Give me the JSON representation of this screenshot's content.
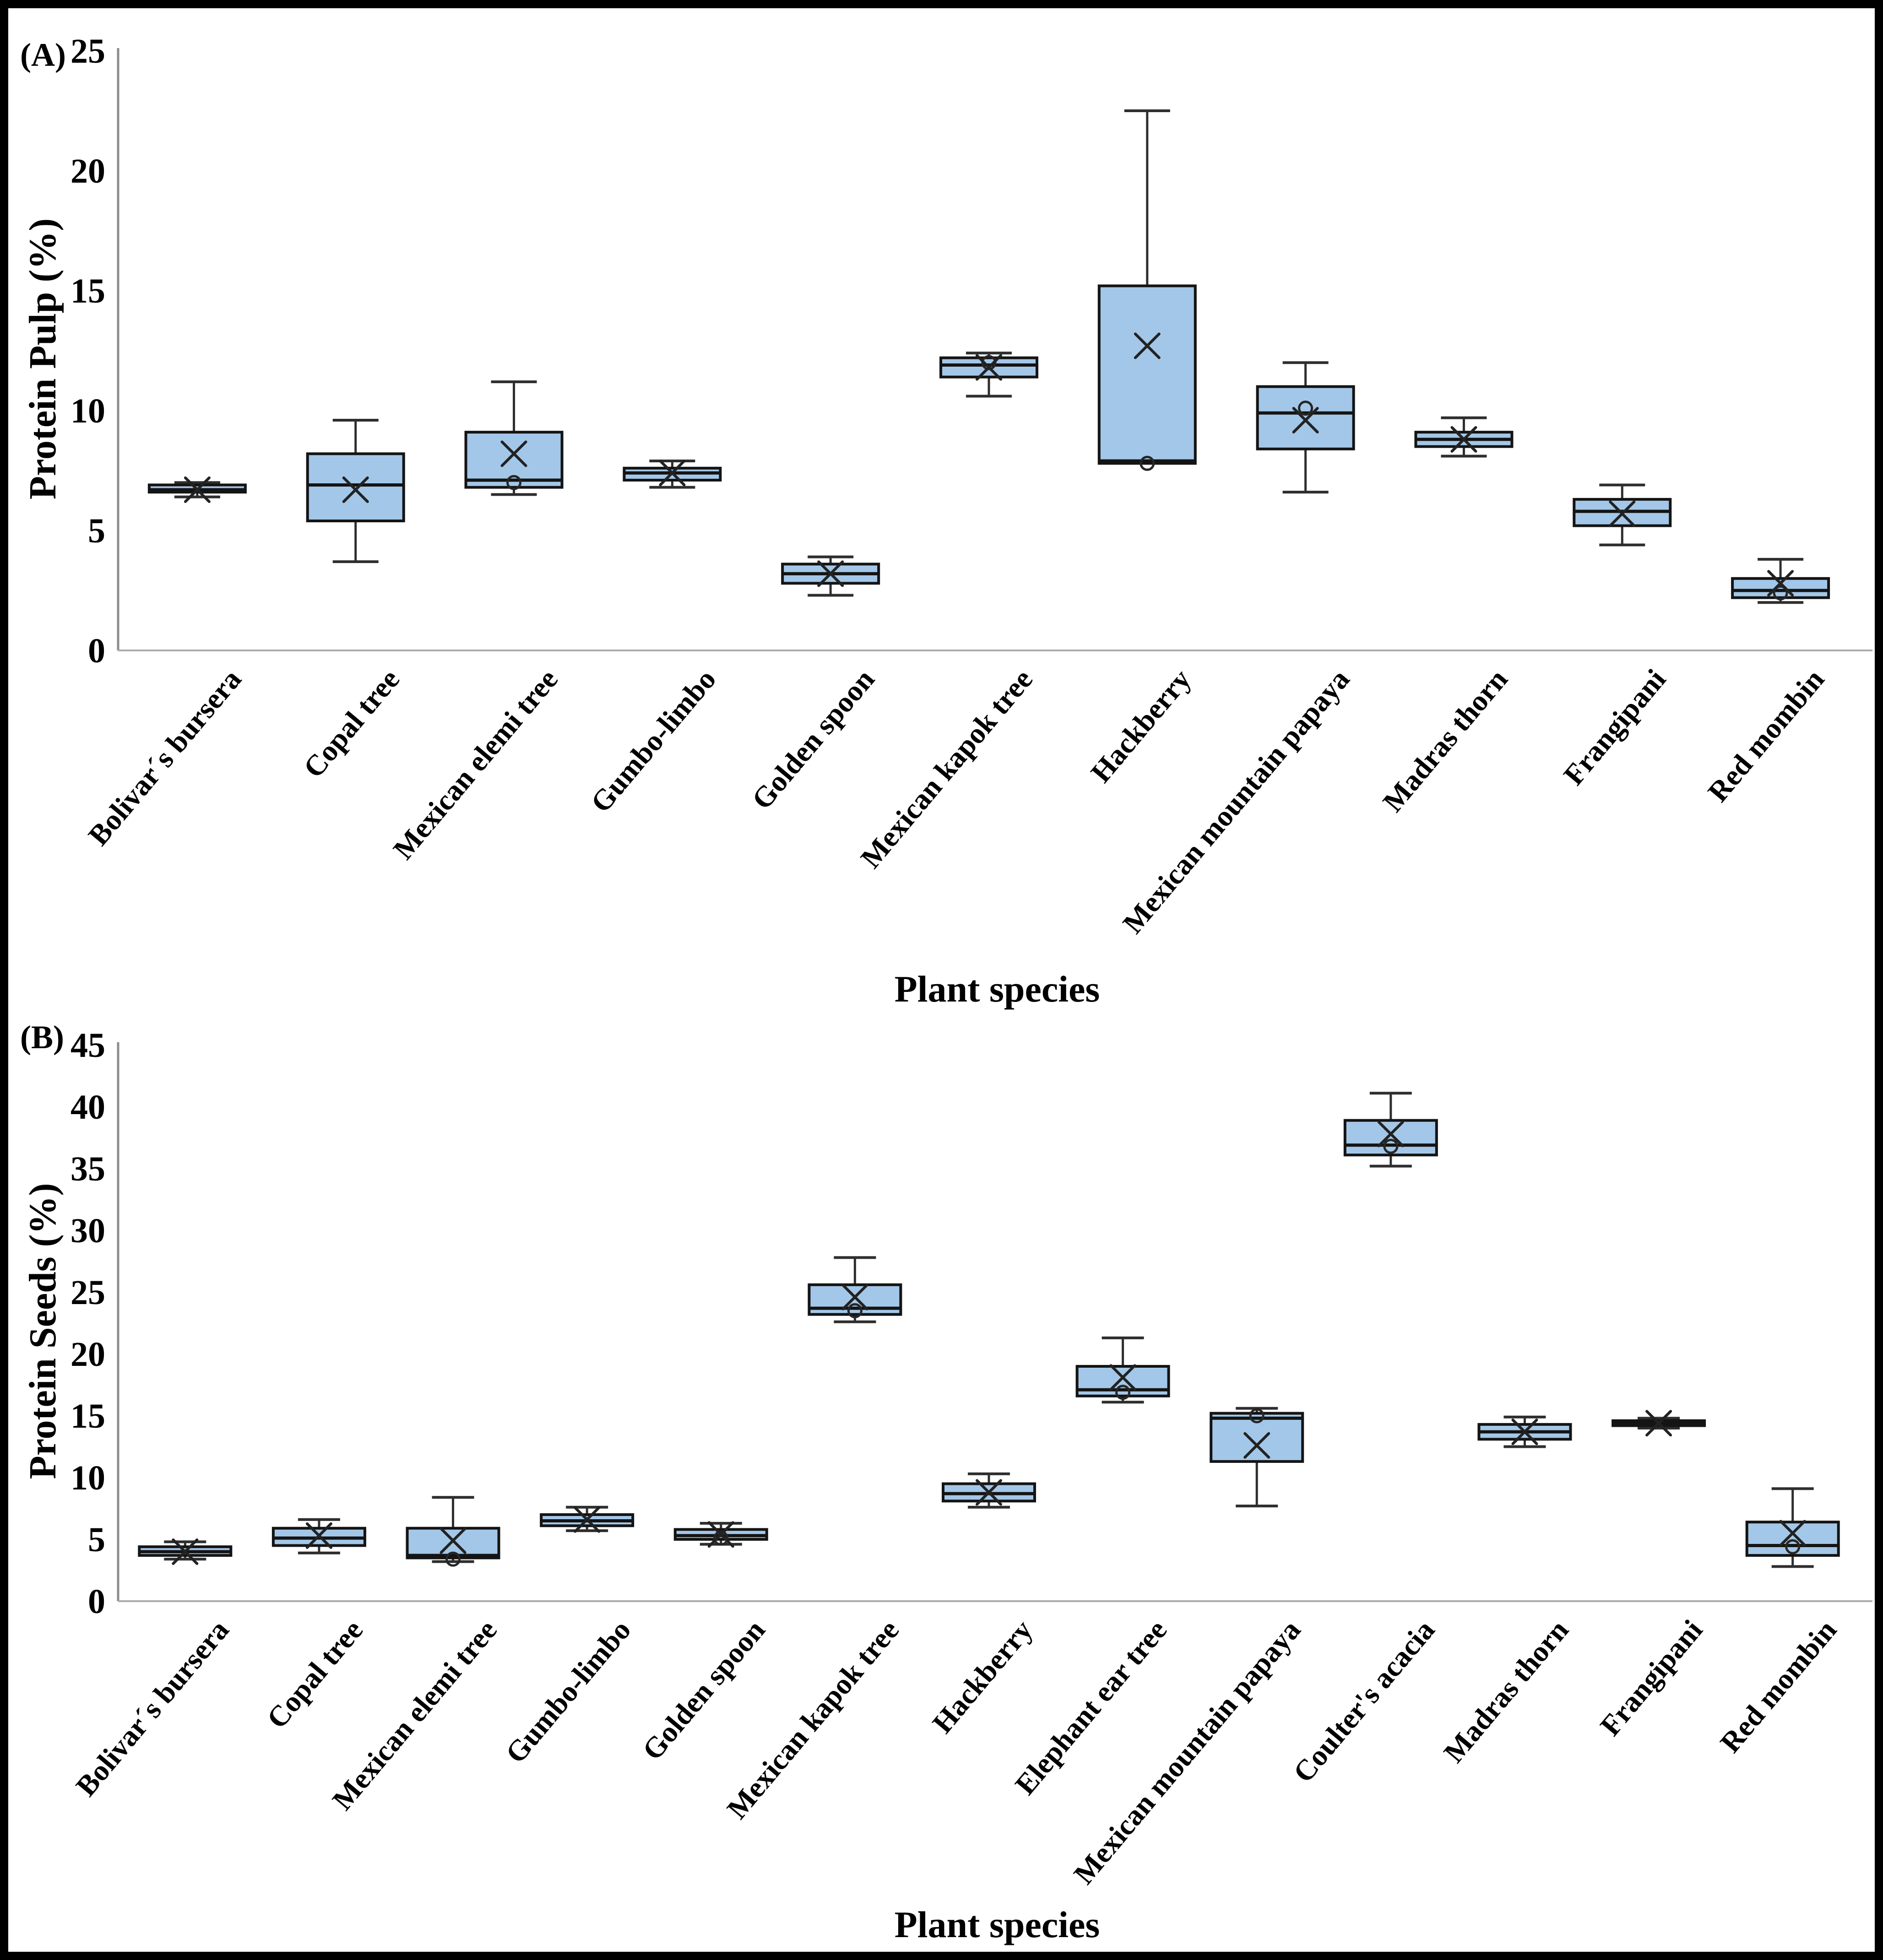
{
  "chart_data": [
    {
      "type": "box",
      "panel_label": "(A)",
      "ylabel": "Protein Pulp (%)",
      "xlabel": "Plant species",
      "ylim": [
        0,
        25
      ],
      "ytick_step": 5,
      "grid": false,
      "legend": false,
      "categories": [
        "Bolivar´s bursera",
        "Copal tree",
        "Mexican elemi tree",
        "Gumbo-limbo",
        "Golden spoon",
        "Mexican kapok tree",
        "Hackberry",
        "Mexican mountain papaya",
        "Madras thorn",
        "Frangipani",
        "Red mombin"
      ],
      "series": [
        {
          "name": "Bolivar´s bursera",
          "min": 6.4,
          "q1": 6.6,
          "median": 6.7,
          "q3": 6.9,
          "max": 7.0,
          "mean": 6.7,
          "outliers": []
        },
        {
          "name": "Copal tree",
          "min": 3.7,
          "q1": 5.4,
          "median": 6.9,
          "q3": 8.2,
          "max": 9.6,
          "mean": 6.7,
          "outliers": []
        },
        {
          "name": "Mexican elemi tree",
          "min": 6.5,
          "q1": 6.8,
          "median": 7.1,
          "q3": 9.1,
          "max": 11.2,
          "mean": 8.2,
          "outliers": [
            7.0
          ]
        },
        {
          "name": "Gumbo-limbo",
          "min": 6.8,
          "q1": 7.1,
          "median": 7.4,
          "q3": 7.6,
          "max": 7.9,
          "mean": 7.4,
          "outliers": []
        },
        {
          "name": "Golden spoon",
          "min": 2.3,
          "q1": 2.8,
          "median": 3.2,
          "q3": 3.6,
          "max": 3.9,
          "mean": 3.2,
          "outliers": []
        },
        {
          "name": "Mexican kapok tree",
          "min": 10.6,
          "q1": 11.4,
          "median": 11.9,
          "q3": 12.2,
          "max": 12.4,
          "mean": 11.8,
          "outliers": [
            12.0
          ]
        },
        {
          "name": "Hackberry",
          "min": 7.8,
          "q1": 7.8,
          "median": 7.9,
          "q3": 15.2,
          "max": 22.5,
          "mean": 12.7,
          "outliers": [
            7.8
          ]
        },
        {
          "name": "Mexican mountain papaya",
          "min": 6.6,
          "q1": 8.4,
          "median": 9.9,
          "q3": 11.0,
          "max": 12.0,
          "mean": 9.6,
          "outliers": [
            10.1
          ]
        },
        {
          "name": "Madras thorn",
          "min": 8.1,
          "q1": 8.5,
          "median": 8.8,
          "q3": 9.1,
          "max": 9.7,
          "mean": 8.8,
          "outliers": []
        },
        {
          "name": "Frangipani",
          "min": 4.4,
          "q1": 5.2,
          "median": 5.8,
          "q3": 6.3,
          "max": 6.9,
          "mean": 5.7,
          "outliers": []
        },
        {
          "name": "Red mombin",
          "min": 2.0,
          "q1": 2.2,
          "median": 2.5,
          "q3": 3.0,
          "max": 3.8,
          "mean": 2.8,
          "outliers": [
            2.4
          ]
        }
      ]
    },
    {
      "type": "box",
      "panel_label": "(B)",
      "ylabel": "Protein Seeds (%)",
      "xlabel": "Plant species",
      "ylim": [
        0,
        45
      ],
      "ytick_step": 5,
      "grid": false,
      "legend": false,
      "categories": [
        "Bolivar´s bursera",
        "Copal tree",
        "Mexican elemi tree",
        "Gumbo-limbo",
        "Golden spoon",
        "Mexican kapok tree",
        "Hackberry",
        "Elephant ear tree",
        "Mexican mountain papaya",
        "Coulter's acacia",
        "Madras thorn",
        "Frangipani",
        "Red mombin"
      ],
      "series": [
        {
          "name": "Bolivar´s bursera",
          "min": 3.4,
          "q1": 3.7,
          "median": 4.0,
          "q3": 4.4,
          "max": 4.8,
          "mean": 4.0,
          "outliers": []
        },
        {
          "name": "Copal tree",
          "min": 3.9,
          "q1": 4.5,
          "median": 5.1,
          "q3": 5.9,
          "max": 6.6,
          "mean": 5.3,
          "outliers": []
        },
        {
          "name": "Mexican elemi tree",
          "min": 3.2,
          "q1": 3.5,
          "median": 3.7,
          "q3": 5.9,
          "max": 8.4,
          "mean": 4.9,
          "outliers": [
            3.4
          ]
        },
        {
          "name": "Gumbo-limbo",
          "min": 5.7,
          "q1": 6.1,
          "median": 6.5,
          "q3": 7.0,
          "max": 7.6,
          "mean": 6.6,
          "outliers": []
        },
        {
          "name": "Golden spoon",
          "min": 4.6,
          "q1": 5.0,
          "median": 5.3,
          "q3": 5.8,
          "max": 6.3,
          "mean": 5.4,
          "outliers": [
            5.1
          ]
        },
        {
          "name": "Mexican kapok tree",
          "min": 22.6,
          "q1": 23.2,
          "median": 23.7,
          "q3": 25.6,
          "max": 27.8,
          "mean": 24.6,
          "outliers": [
            23.5
          ]
        },
        {
          "name": "Hackberry",
          "min": 7.6,
          "q1": 8.1,
          "median": 8.7,
          "q3": 9.5,
          "max": 10.3,
          "mean": 8.8,
          "outliers": []
        },
        {
          "name": "Elephant ear tree",
          "min": 16.1,
          "q1": 16.6,
          "median": 17.1,
          "q3": 19.0,
          "max": 21.3,
          "mean": 18.1,
          "outliers": [
            16.9
          ]
        },
        {
          "name": "Mexican mountain papaya",
          "min": 7.7,
          "q1": 11.3,
          "median": 14.8,
          "q3": 15.2,
          "max": 15.6,
          "mean": 12.6,
          "outliers": [
            15.0
          ]
        },
        {
          "name": "Coulter's acacia",
          "min": 35.2,
          "q1": 36.1,
          "median": 36.9,
          "q3": 38.9,
          "max": 41.1,
          "mean": 37.8,
          "outliers": [
            36.8
          ]
        },
        {
          "name": "Madras thorn",
          "min": 12.5,
          "q1": 13.1,
          "median": 13.7,
          "q3": 14.3,
          "max": 14.9,
          "mean": 13.7,
          "outliers": []
        },
        {
          "name": "Frangipani",
          "min": 14.0,
          "q1": 14.2,
          "median": 14.4,
          "q3": 14.6,
          "max": 14.8,
          "mean": 14.4,
          "outliers": []
        },
        {
          "name": "Red mombin",
          "min": 2.8,
          "q1": 3.7,
          "median": 4.5,
          "q3": 6.4,
          "max": 9.1,
          "mean": 5.5,
          "outliers": [
            4.4
          ]
        }
      ]
    }
  ],
  "style": {
    "box_fill": "#A3C7E8",
    "box_stroke": "#141414",
    "whisker_stroke": "#2E2E2E",
    "mean_marker": "x-cross",
    "outlier_marker": "open-circle",
    "axis_spine_color": "#8C8C8C",
    "baseline_color": "#ABABAB",
    "text_color": "#000000",
    "background": "#FFFFFF"
  }
}
